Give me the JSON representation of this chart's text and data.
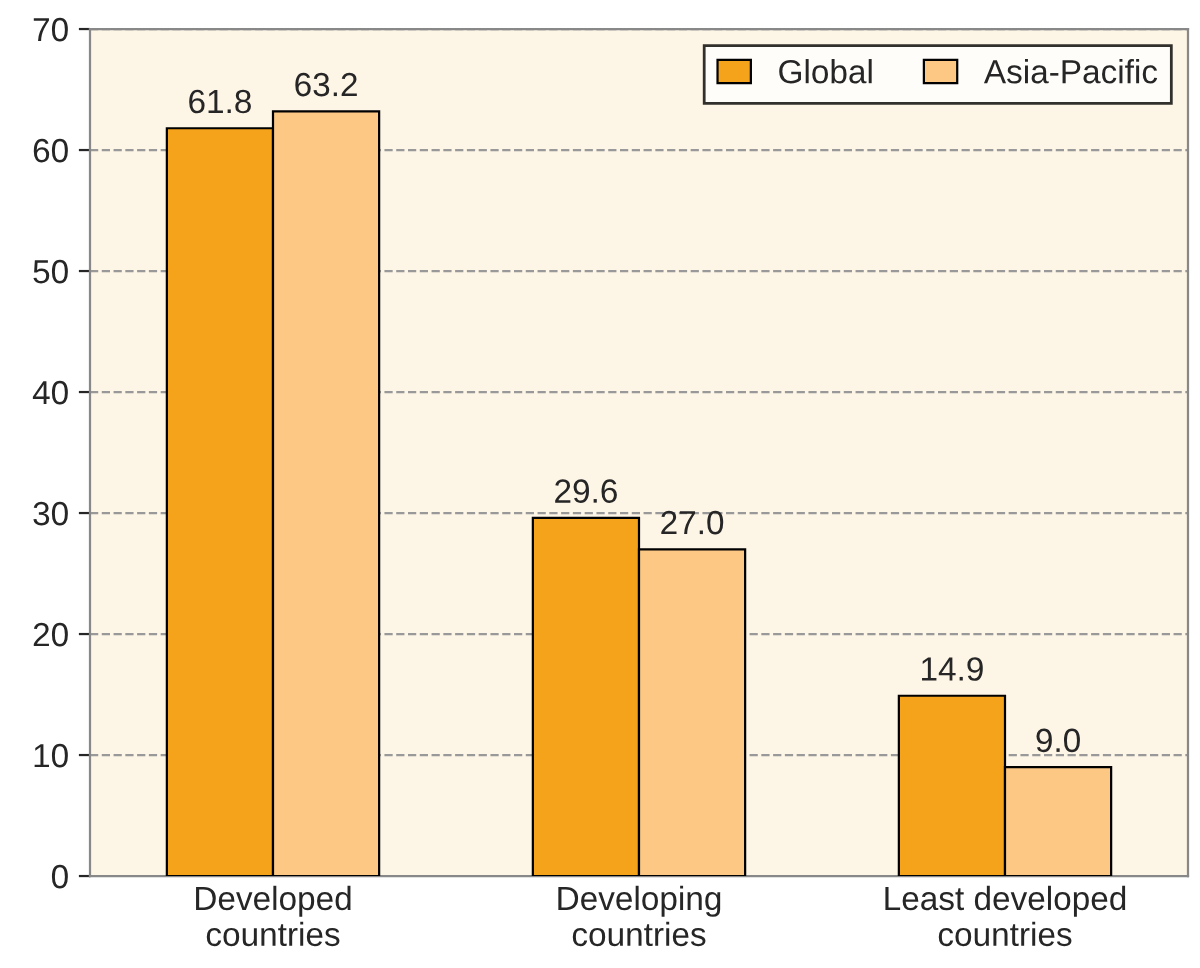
{
  "chart_data": {
    "type": "bar",
    "categories": [
      "Developed\ncountries",
      "Developing\ncountries",
      "Least developed\ncountries"
    ],
    "series": [
      {
        "name": "Global",
        "color": "#f5a31a",
        "values": [
          61.8,
          29.6,
          14.9
        ]
      },
      {
        "name": "Asia-Pacific",
        "color": "#fdc884",
        "values": [
          63.2,
          27.0,
          9.0
        ]
      }
    ],
    "value_labels": [
      [
        "61.8",
        "29.6",
        "14.9"
      ],
      [
        "63.2",
        "27.0",
        "9.0"
      ]
    ],
    "ylim": [
      0,
      70
    ],
    "yticks": [
      0,
      10,
      20,
      30,
      40,
      50,
      60,
      70
    ],
    "grid": "y",
    "legend": "top right"
  }
}
